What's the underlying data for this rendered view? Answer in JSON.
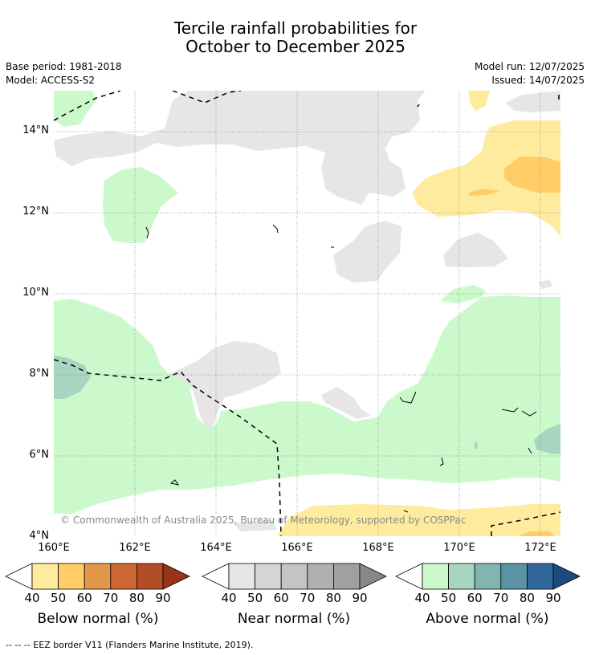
{
  "title_line1": "Tercile rainfall probabilities for",
  "title_line2": "October to December 2025",
  "base_period": "Base period: 1981-2018",
  "model": "Model: ACCESS-S2",
  "model_run": "Model run: 12/07/2025",
  "issued": "Issued: 14/07/2025",
  "map": {
    "lat_labels": [
      "14°N",
      "12°N",
      "10°N",
      "8°N",
      "6°N",
      "4°N"
    ],
    "lon_labels": [
      "160°E",
      "162°E",
      "164°E",
      "166°E",
      "168°E",
      "170°E",
      "172°E"
    ],
    "copyright": "© Commonwealth of Australia 2025, Bureau of Meteorology, supported by COSPPac",
    "colors": {
      "near_normal_40": "#e6e6e6",
      "above_normal_40": "#ccf9cc",
      "above_normal_50": "#a6d6bf",
      "below_normal_40": "#ffeb9e",
      "below_normal_50": "#ffcc66",
      "eez_border": "#000000",
      "grid": "#888888"
    }
  },
  "legends": [
    {
      "name": "below",
      "label": "Below normal (%)",
      "ticks": [
        "40",
        "50",
        "60",
        "70",
        "80",
        "90"
      ],
      "colors": [
        "#ffeb9e",
        "#ffcc66",
        "#e2964a",
        "#cc6633",
        "#b24e27",
        "#99331a"
      ]
    },
    {
      "name": "near",
      "label": "Near normal (%)",
      "ticks": [
        "40",
        "50",
        "60",
        "70",
        "80",
        "90"
      ],
      "colors": [
        "#e6e6e6",
        "#d6d6d6",
        "#c4c4c4",
        "#b0b0b0",
        "#a0a0a0",
        "#888888"
      ]
    },
    {
      "name": "above",
      "label": "Above normal (%)",
      "ticks": [
        "40",
        "50",
        "60",
        "70",
        "80",
        "90"
      ],
      "colors": [
        "#ccf9cc",
        "#a6d6bf",
        "#80b5b0",
        "#5a93a3",
        "#336699",
        "#1a4c80"
      ]
    }
  ],
  "footnote": "--  --  -- EEZ border V11 (Flanders Marine Institute, 2019)."
}
